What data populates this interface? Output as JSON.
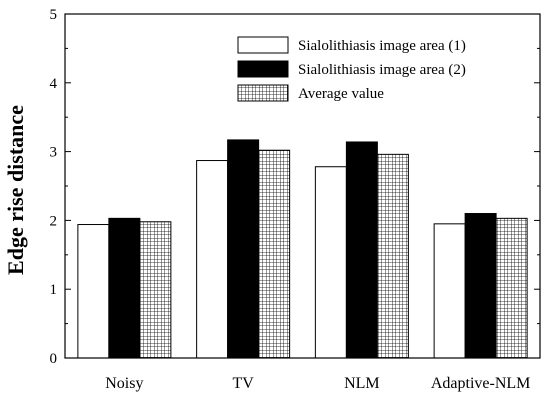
{
  "chart_data": {
    "type": "bar",
    "title": "",
    "xlabel": "",
    "ylabel": "Edge rise distance",
    "ylim": [
      0,
      5
    ],
    "yticks": [
      "0",
      "1",
      "2",
      "3",
      "4",
      "5"
    ],
    "categories": [
      "Noisy",
      "TV",
      "NLM",
      "Adaptive-NLM"
    ],
    "series": [
      {
        "name": "Sialolithiasis image area (1)",
        "values": [
          1.94,
          2.87,
          2.78,
          1.95
        ],
        "fill": "#ffffff"
      },
      {
        "name": "Sialolithiasis image area (2)",
        "values": [
          2.03,
          3.17,
          3.14,
          2.1
        ],
        "fill": "#000000"
      },
      {
        "name": "Average value",
        "values": [
          1.98,
          3.02,
          2.96,
          2.03
        ],
        "fill": "grid"
      }
    ],
    "legend": "top-right",
    "grid": false
  }
}
